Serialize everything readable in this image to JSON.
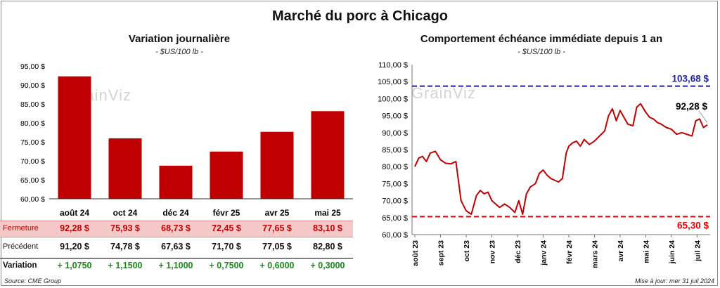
{
  "header": {
    "title": "Marché du porc à Chicago"
  },
  "left_panel": {
    "title": "Variation  journalière",
    "unit": "- $US/100 lb -"
  },
  "right_panel": {
    "title": "Comportement  échéance immédiate depuis 1 an",
    "unit": "- $US/100 lb -"
  },
  "watermark": "GrainViz",
  "table": {
    "close_label": "Fermeture",
    "close_values": [
      "92,28  $",
      "75,93  $",
      "68,73  $",
      "72,45  $",
      "77,65  $",
      "83,10  $"
    ],
    "prev_label": "Précédent",
    "prev_values": [
      "91,20  $",
      "74,78  $",
      "67,63  $",
      "71,70  $",
      "77,05  $",
      "82,80  $"
    ],
    "var_label": "Variation",
    "var_values": [
      "+ 1,0750",
      "+ 1,1500",
      "+ 1,1000",
      "+ 0,7500",
      "+ 0,6000",
      "+ 0,3000"
    ]
  },
  "footer": {
    "source": "Source: CME Group",
    "updated": "Mise à jour: mer 31 juil 2024"
  },
  "colors": {
    "bar": "#c00000",
    "line": "#c00000",
    "max_line": "#1f1fa8",
    "min_line": "#e00000",
    "close_row_bg": "#f6c9c9",
    "variation": "#1a8a1a"
  },
  "chart_data": [
    {
      "type": "bar",
      "categories": [
        "août 24",
        "oct 24",
        "déc 24",
        "févr 25",
        "avr 25",
        "mai 25"
      ],
      "values": [
        92.28,
        75.93,
        68.73,
        72.45,
        77.65,
        83.1
      ],
      "ylim": [
        60,
        95
      ],
      "yticks": [
        "60,00 $",
        "65,00 $",
        "70,00 $",
        "75,00 $",
        "80,00 $",
        "85,00 $",
        "90,00 $",
        "95,00 $"
      ],
      "grid": false
    },
    {
      "type": "line",
      "ylim": [
        60,
        110
      ],
      "yticks": [
        "60,00 $",
        "65,00 $",
        "70,00 $",
        "75,00 $",
        "80,00 $",
        "85,00 $",
        "90,00 $",
        "95,00 $",
        "100,00 $",
        "105,00 $",
        "110,00 $"
      ],
      "xticks": [
        "août 23",
        "sept 23",
        "oct 23",
        "nov 23",
        "déc 23",
        "janv 24",
        "févr 24",
        "mars 24",
        "avr 24",
        "mai 24",
        "juin 24",
        "juil 24"
      ],
      "x": [
        0,
        0.15,
        0.3,
        0.45,
        0.6,
        0.8,
        1.0,
        1.2,
        1.4,
        1.6,
        1.8,
        2.0,
        2.2,
        2.4,
        2.55,
        2.7,
        2.85,
        3.0,
        3.15,
        3.3,
        3.5,
        3.7,
        3.9,
        4.05,
        4.2,
        4.35,
        4.5,
        4.7,
        4.85,
        5.0,
        5.15,
        5.3,
        5.45,
        5.6,
        5.75,
        5.9,
        6.0,
        6.15,
        6.3,
        6.45,
        6.6,
        6.8,
        7.0,
        7.2,
        7.4,
        7.55,
        7.7,
        7.85,
        8.0,
        8.15,
        8.3,
        8.5,
        8.65,
        8.8,
        9.0,
        9.15,
        9.3,
        9.45,
        9.6,
        9.8,
        10.0,
        10.2,
        10.4,
        10.6,
        10.8,
        10.95,
        11.1,
        11.25,
        11.4
      ],
      "values": [
        80.0,
        82.5,
        83.0,
        81.5,
        84.0,
        84.5,
        82.0,
        81.0,
        80.8,
        81.5,
        70.0,
        67.0,
        66.0,
        71.5,
        73.0,
        72.0,
        72.5,
        70.0,
        69.0,
        68.0,
        69.0,
        68.0,
        66.5,
        70.0,
        66.0,
        72.0,
        74.0,
        75.0,
        78.0,
        79.0,
        77.5,
        76.5,
        76.0,
        75.5,
        76.5,
        84.0,
        86.0,
        87.0,
        87.5,
        86.0,
        88.0,
        86.5,
        87.5,
        89.0,
        90.5,
        95.0,
        97.0,
        93.5,
        96.5,
        94.5,
        92.5,
        92.0,
        97.5,
        98.5,
        96.0,
        94.5,
        94.0,
        93.0,
        92.5,
        91.5,
        91.0,
        89.5,
        90.0,
        89.5,
        89.0,
        93.5,
        94.0,
        91.5,
        92.28
      ],
      "reference_lines": [
        {
          "value": 103.68,
          "label": "103,68 $"
        },
        {
          "value": 65.3,
          "label": "65,30 $"
        }
      ],
      "annotations": [
        {
          "value": 92.28,
          "label": "92,28 $"
        }
      ],
      "grid": false
    }
  ]
}
